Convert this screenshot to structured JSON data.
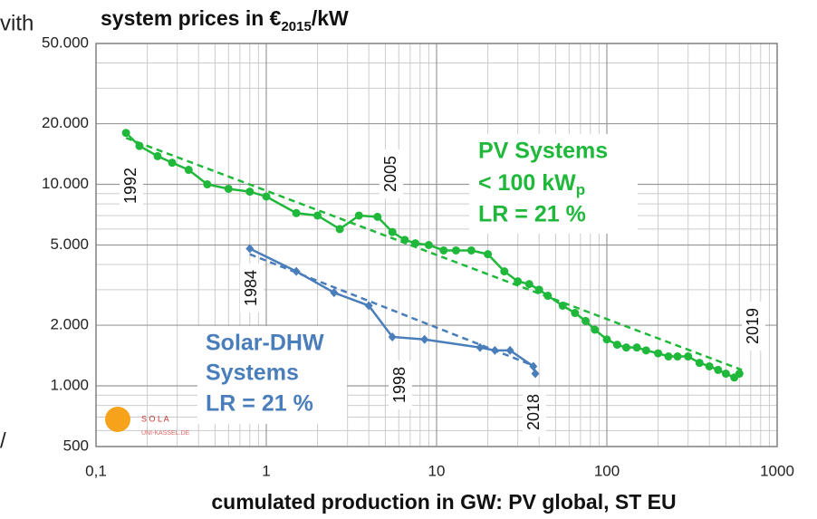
{
  "chart_data": {
    "type": "line",
    "title": "system prices in €",
    "title_sub": "2015",
    "title_end": "/kW",
    "x_label": "cumulated production  in GW:  PV global, ST EU",
    "log_x": true,
    "log_y": true,
    "grid": true,
    "xlim": [
      0.1,
      1000
    ],
    "ylim": [
      500,
      50000
    ],
    "xticks": [
      {
        "value": 0.1,
        "label": "0,1"
      },
      1,
      10,
      100,
      1000
    ],
    "yticks": [
      500,
      {
        "value": 1000,
        "label": "1.000"
      },
      {
        "value": 2000,
        "label": "2.000"
      },
      {
        "value": 5000,
        "label": "5.000"
      },
      {
        "value": 10000,
        "label": "10.000"
      },
      {
        "value": 20000,
        "label": "20.000"
      },
      {
        "value": 50000,
        "label": "50.000"
      }
    ],
    "xminorticks": [
      0.2,
      0.3,
      0.4,
      0.5,
      0.6,
      0.7,
      0.8,
      0.9,
      2,
      3,
      4,
      5,
      6,
      7,
      8,
      9,
      20,
      30,
      40,
      50,
      60,
      70,
      80,
      90,
      200,
      300,
      400,
      500,
      600,
      700,
      800,
      900
    ],
    "yminorticks": [
      600,
      700,
      800,
      900,
      3000,
      4000,
      6000,
      7000,
      8000,
      9000,
      30000,
      40000
    ],
    "series": [
      {
        "name": "PV Systems",
        "line2": "< 100 kW",
        "line2_sub": "p",
        "line3": "LR = 21 %",
        "color": "#1fb83b",
        "marker": "circle",
        "x": [
          0.15,
          0.18,
          0.23,
          0.28,
          0.35,
          0.45,
          0.6,
          0.8,
          1.0,
          1.5,
          2,
          2.7,
          3.5,
          4.5,
          5.5,
          6.5,
          7.5,
          9,
          11,
          13,
          16,
          20,
          25,
          30,
          35,
          40,
          45,
          55,
          65,
          75,
          85,
          100,
          115,
          130,
          150,
          170,
          200,
          230,
          260,
          300,
          350,
          400,
          450,
          500,
          560,
          600
        ],
        "values": [
          18000,
          15500,
          13800,
          12800,
          11800,
          10000,
          9500,
          9200,
          8700,
          7200,
          7000,
          6000,
          7000,
          6900,
          5800,
          5300,
          5100,
          5000,
          4700,
          4700,
          4700,
          4500,
          3700,
          3300,
          3200,
          3000,
          2800,
          2500,
          2300,
          2100,
          1900,
          1700,
          1600,
          1550,
          1550,
          1500,
          1450,
          1400,
          1400,
          1400,
          1300,
          1250,
          1200,
          1150,
          1100,
          1150
        ],
        "trend": {
          "x": [
            0.15,
            620
          ],
          "values": [
            17000,
            1200
          ]
        }
      },
      {
        "name": "Solar-DHW",
        "line2": "Systems",
        "line3": "LR = 21 %",
        "color": "#4a7ebb",
        "marker": "diamond",
        "x": [
          0.8,
          1.5,
          2.5,
          4,
          5.5,
          8.5,
          18,
          22,
          27,
          37,
          38
        ],
        "values": [
          4800,
          3700,
          2900,
          2500,
          1750,
          1700,
          1550,
          1500,
          1500,
          1250,
          1150
        ],
        "trend": {
          "x": [
            0.8,
            38
          ],
          "values": [
            4500,
            1250
          ]
        }
      }
    ],
    "annotations": [
      "1992",
      "2005",
      "1984",
      "1998",
      "2018",
      "2019"
    ],
    "logo": [
      "S O L A",
      "UNI-KASSEL.DE"
    ],
    "fragments": [
      "vith",
      "/"
    ]
  }
}
